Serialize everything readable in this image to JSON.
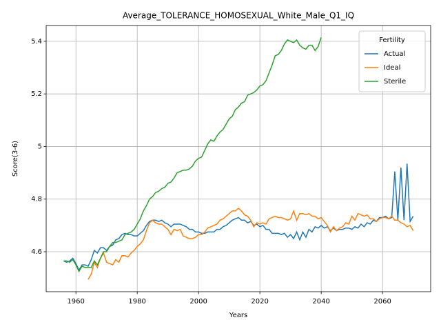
{
  "chart_data": {
    "type": "line",
    "title": "Average_TOLERANCE_HOMOSEXUAL_White_Male_Q1_IQ",
    "x_label": "Years",
    "y_label": "Score(3-6)",
    "legend_title": "Fertility",
    "legend_corner": "upper right",
    "grid": true,
    "xlim": [
      1950.3,
      2075.7
    ],
    "xticks": [
      1960,
      1980,
      2000,
      2020,
      2040,
      2060
    ],
    "ylim": [
      4.448,
      5.46
    ],
    "yticks": [
      4.6,
      4.8,
      5.0,
      5.2,
      5.4
    ],
    "x": [
      1956,
      1957,
      1958,
      1959,
      1960,
      1961,
      1962,
      1963,
      1964,
      1965,
      1966,
      1967,
      1968,
      1969,
      1970,
      1971,
      1972,
      1973,
      1974,
      1975,
      1976,
      1977,
      1978,
      1979,
      1980,
      1981,
      1982,
      1983,
      1984,
      1985,
      1986,
      1987,
      1988,
      1989,
      1990,
      1991,
      1992,
      1993,
      1994,
      1995,
      1996,
      1997,
      1998,
      1999,
      2000,
      2001,
      2002,
      2003,
      2004,
      2005,
      2006,
      2007,
      2008,
      2009,
      2010,
      2011,
      2012,
      2013,
      2014,
      2015,
      2016,
      2017,
      2018,
      2019,
      2020,
      2021,
      2022,
      2023,
      2024,
      2025,
      2026,
      2027,
      2028,
      2029,
      2030,
      2031,
      2032,
      2033,
      2034,
      2035,
      2036,
      2037,
      2038,
      2039,
      2040,
      2041,
      2042,
      2043,
      2044,
      2045,
      2046,
      2047,
      2048,
      2049,
      2050,
      2051,
      2052,
      2053,
      2054,
      2055,
      2056,
      2057,
      2058,
      2059,
      2060,
      2061,
      2062,
      2063,
      2064,
      2065,
      2066,
      2067,
      2068,
      2069,
      2070
    ],
    "series": [
      {
        "name": "Actual",
        "color": "#1f77b4",
        "values": [
          4.565,
          4.56,
          4.565,
          4.575,
          4.555,
          4.53,
          4.55,
          4.55,
          4.545,
          4.57,
          4.605,
          4.595,
          4.615,
          4.615,
          4.605,
          4.62,
          4.625,
          4.645,
          4.65,
          4.665,
          4.67,
          4.665,
          4.665,
          4.66,
          4.66,
          4.67,
          4.68,
          4.7,
          4.715,
          4.72,
          4.72,
          4.715,
          4.72,
          4.71,
          4.705,
          4.695,
          4.705,
          4.705,
          4.705,
          4.7,
          4.695,
          4.685,
          4.685,
          4.675,
          4.675,
          4.67,
          4.67,
          4.675,
          4.675,
          4.675,
          4.685,
          4.685,
          4.695,
          4.7,
          4.71,
          4.72,
          4.725,
          4.73,
          4.72,
          4.72,
          4.71,
          4.715,
          4.7,
          4.705,
          4.695,
          4.7,
          4.685,
          4.685,
          4.67,
          4.67,
          4.67,
          4.665,
          4.67,
          4.655,
          4.665,
          4.65,
          4.675,
          4.645,
          4.675,
          4.655,
          4.685,
          4.675,
          4.695,
          4.69,
          4.7,
          4.69,
          4.695,
          4.68,
          4.69,
          4.68,
          4.685,
          4.685,
          4.69,
          4.69,
          4.685,
          4.695,
          4.69,
          4.705,
          4.695,
          4.71,
          4.705,
          4.72,
          4.715,
          4.73,
          4.73,
          4.735,
          4.725,
          4.73,
          4.905,
          4.72,
          4.92,
          4.72,
          4.935,
          4.715,
          4.735
        ]
      },
      {
        "name": "Ideal",
        "color": "#ff7f0e",
        "values": [
          null,
          null,
          null,
          null,
          null,
          null,
          null,
          null,
          4.495,
          4.515,
          4.56,
          4.54,
          4.575,
          4.595,
          4.56,
          4.555,
          4.55,
          4.57,
          4.56,
          4.585,
          4.585,
          4.58,
          4.595,
          4.605,
          4.62,
          4.63,
          4.645,
          4.68,
          4.71,
          4.72,
          4.71,
          4.705,
          4.705,
          4.695,
          4.685,
          4.665,
          4.685,
          4.68,
          4.685,
          4.66,
          4.655,
          4.65,
          4.65,
          4.655,
          4.665,
          4.665,
          4.675,
          4.69,
          4.695,
          4.7,
          4.705,
          4.72,
          4.725,
          4.735,
          4.745,
          4.755,
          4.755,
          4.765,
          4.755,
          4.74,
          4.735,
          4.72,
          4.695,
          4.71,
          4.705,
          4.71,
          4.705,
          4.725,
          4.73,
          4.735,
          4.73,
          4.73,
          4.725,
          4.72,
          4.725,
          4.755,
          4.72,
          4.745,
          4.745,
          4.74,
          4.745,
          4.735,
          4.735,
          4.725,
          4.73,
          4.715,
          4.7,
          4.675,
          4.695,
          4.68,
          4.69,
          4.695,
          4.71,
          4.705,
          4.735,
          4.72,
          4.745,
          4.74,
          4.735,
          4.74,
          4.725,
          4.725,
          4.715,
          4.725,
          4.73,
          4.73,
          4.725,
          4.735,
          4.72,
          4.72,
          4.71,
          4.705,
          4.695,
          4.7,
          4.68
        ]
      },
      {
        "name": "Sterile",
        "color": "#2ca02c",
        "values": [
          4.565,
          4.565,
          4.56,
          4.57,
          4.55,
          4.525,
          4.545,
          4.54,
          4.54,
          4.54,
          4.565,
          4.55,
          4.575,
          4.6,
          4.6,
          4.62,
          4.635,
          4.635,
          4.64,
          4.645,
          4.665,
          4.67,
          4.675,
          4.685,
          4.705,
          4.725,
          4.755,
          4.775,
          4.8,
          4.81,
          4.825,
          4.83,
          4.84,
          4.845,
          4.86,
          4.865,
          4.88,
          4.9,
          4.905,
          4.91,
          4.91,
          4.915,
          4.925,
          4.945,
          4.955,
          4.96,
          4.985,
          5.01,
          5.025,
          5.02,
          5.04,
          5.055,
          5.065,
          5.085,
          5.105,
          5.115,
          5.14,
          5.15,
          5.165,
          5.17,
          5.195,
          5.2,
          5.205,
          5.215,
          5.23,
          5.235,
          5.25,
          5.28,
          5.31,
          5.345,
          5.35,
          5.365,
          5.39,
          5.405,
          5.4,
          5.395,
          5.405,
          5.385,
          5.375,
          5.37,
          5.385,
          5.385,
          5.365,
          5.38,
          5.415,
          null,
          null,
          null,
          null,
          null,
          null,
          null,
          null,
          null,
          null,
          null,
          null,
          null,
          null,
          null,
          null,
          null,
          null,
          null,
          null,
          null,
          null,
          null,
          null,
          null,
          null,
          null,
          null,
          null,
          null
        ]
      }
    ]
  }
}
